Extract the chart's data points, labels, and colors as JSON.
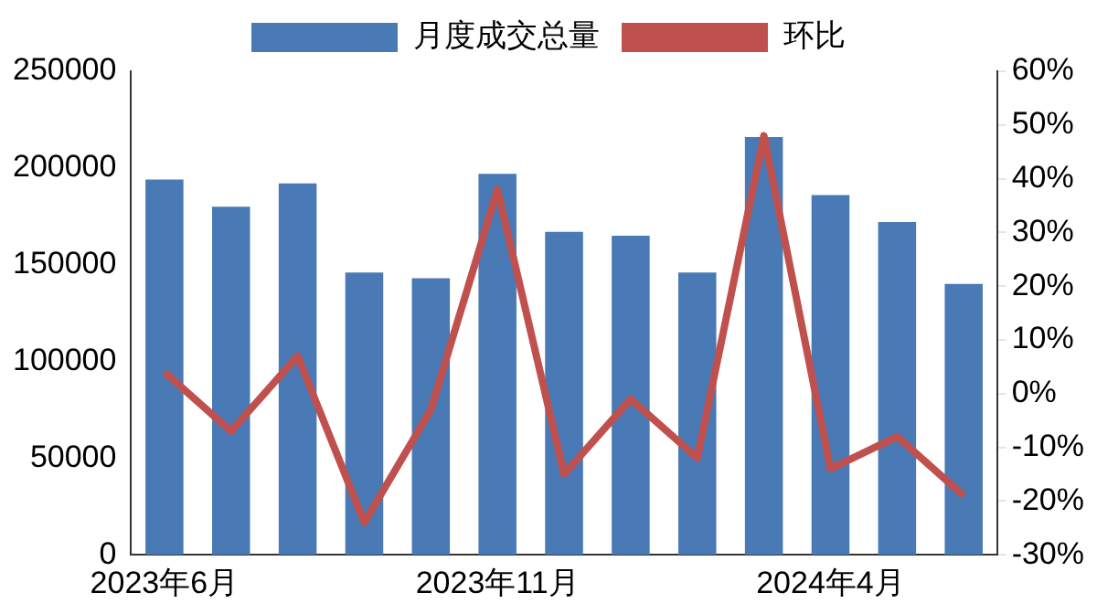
{
  "chart_data": {
    "type": "bar",
    "categories": [
      "2023年6月",
      null,
      null,
      null,
      null,
      "2023年11月",
      null,
      null,
      null,
      null,
      "2024年4月",
      null,
      null
    ],
    "series": [
      {
        "name": "月度成交总量",
        "color": "#4a7ab5",
        "values": [
          194000,
          180000,
          192000,
          146000,
          143000,
          197000,
          167000,
          165000,
          146000,
          216000,
          186000,
          172000,
          140000
        ]
      },
      {
        "name": "环比",
        "type": "line",
        "axis": "y2",
        "color": "#c0504d",
        "values": [
          4,
          -7,
          7,
          -24,
          -3,
          38,
          -15,
          -1,
          -12,
          48,
          -14,
          -8,
          -19
        ]
      }
    ],
    "ylim": [
      0,
      250000
    ],
    "yticks": [
      0,
      50000,
      100000,
      150000,
      200000,
      250000
    ],
    "y2lim": [
      -30,
      60
    ],
    "y2ticks": [
      {
        "value": -30,
        "label": "-30%"
      },
      {
        "value": -20,
        "label": "-20%"
      },
      {
        "value": -10,
        "label": "-10%"
      },
      {
        "value": 0,
        "label": "0%"
      },
      {
        "value": 10,
        "label": "10%"
      },
      {
        "value": 20,
        "label": "20%"
      },
      {
        "value": 30,
        "label": "30%"
      },
      {
        "value": 40,
        "label": "40%"
      },
      {
        "value": 50,
        "label": "50%"
      },
      {
        "value": 60,
        "label": "60%"
      }
    ],
    "grid": false,
    "legend": "top",
    "marker": "none",
    "line_style": "solid"
  }
}
